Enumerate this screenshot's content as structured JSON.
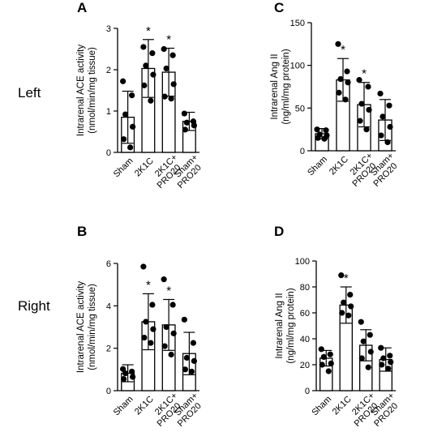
{
  "row_labels": {
    "top": "Left",
    "bottom": "Right"
  },
  "chart_data": [
    {
      "panel": "A",
      "type": "bar",
      "categories": [
        "Sham",
        "2K1C",
        "2K1C+ PRO20",
        "Sham+ PRO20"
      ],
      "values": [
        0.85,
        2.03,
        1.94,
        0.75
      ],
      "sd": [
        0.63,
        0.7,
        0.58,
        0.22
      ],
      "points": [
        [
          1.72,
          1.38,
          0.92,
          0.62,
          0.32,
          0.12
        ],
        [
          2.55,
          2.4,
          2.1,
          1.88,
          1.62,
          1.25
        ],
        [
          2.5,
          2.35,
          2.03,
          1.65,
          1.35,
          1.3
        ],
        [
          0.94,
          0.75,
          0.72,
          0.65,
          0.55
        ]
      ],
      "sig": [
        "",
        "*",
        "*",
        ""
      ],
      "ylabel": "Intrarenal ACE activity (nmol/min/mg tissue)",
      "ylim": [
        0,
        3
      ],
      "yticks": [
        0,
        1,
        2,
        3
      ],
      "grid": false
    },
    {
      "panel": "C",
      "type": "bar",
      "categories": [
        "Sham",
        "2K1C",
        "2K1C+ PRO20",
        "Sham+ PRO20"
      ],
      "values": [
        20,
        83,
        54,
        36
      ],
      "sd": [
        6,
        25,
        26,
        24
      ],
      "points": [
        [
          25,
          24,
          19,
          18,
          15,
          14
        ],
        [
          125,
          93,
          84,
          80,
          68,
          60
        ],
        [
          83,
          75,
          55,
          48,
          35,
          25
        ],
        [
          67,
          53,
          40,
          28,
          18,
          10
        ]
      ],
      "sig": [
        "",
        "*",
        "*",
        ""
      ],
      "ylabel": "Intrarenal Ang II (ng/ml/mg protein)",
      "ylim": [
        0,
        150
      ],
      "yticks": [
        0,
        50,
        100,
        150
      ],
      "grid": false
    },
    {
      "panel": "B",
      "type": "bar",
      "categories": [
        "Sham",
        "2K1C",
        "2K1C+ PRO20",
        "Sham+ PRO20"
      ],
      "values": [
        0.82,
        3.25,
        3.1,
        1.75
      ],
      "sd": [
        0.4,
        1.32,
        1.2,
        1.0
      ],
      "points": [
        [
          1.02,
          0.9,
          0.82,
          0.65,
          0.55
        ],
        [
          5.85,
          4.05,
          3.25,
          2.9,
          2.5,
          2.25
        ],
        [
          5.25,
          4.05,
          3.0,
          2.7,
          2.1,
          1.7
        ],
        [
          3.35,
          2.25,
          1.55,
          1.4,
          1.0,
          0.9
        ]
      ],
      "sig": [
        "",
        "*",
        "*",
        ""
      ],
      "ylabel": "Intrarenal ACE activity (nmol/min/mg tissue)",
      "ylim": [
        0,
        6
      ],
      "yticks": [
        0,
        2,
        4,
        6
      ],
      "grid": false
    },
    {
      "panel": "D",
      "type": "bar",
      "categories": [
        "Sham",
        "2K1C",
        "2K1C+ PRO20",
        "Sham+ PRO20"
      ],
      "values": [
        25,
        66,
        35,
        24
      ],
      "sd": [
        6,
        14,
        12,
        9
      ],
      "points": [
        [
          32,
          28,
          26,
          21,
          20,
          15
        ],
        [
          89,
          74,
          68,
          65,
          60,
          58
        ],
        [
          53,
          43,
          38,
          30,
          25,
          18
        ],
        [
          33,
          27,
          25,
          22,
          20,
          17
        ]
      ],
      "sig": [
        "",
        "*",
        "",
        ""
      ],
      "ylabel": "Intrarenal Ang II (ng/ml/mg protein)",
      "ylim": [
        0,
        100
      ],
      "yticks": [
        0,
        20,
        40,
        60,
        80,
        100
      ],
      "grid": false
    }
  ]
}
